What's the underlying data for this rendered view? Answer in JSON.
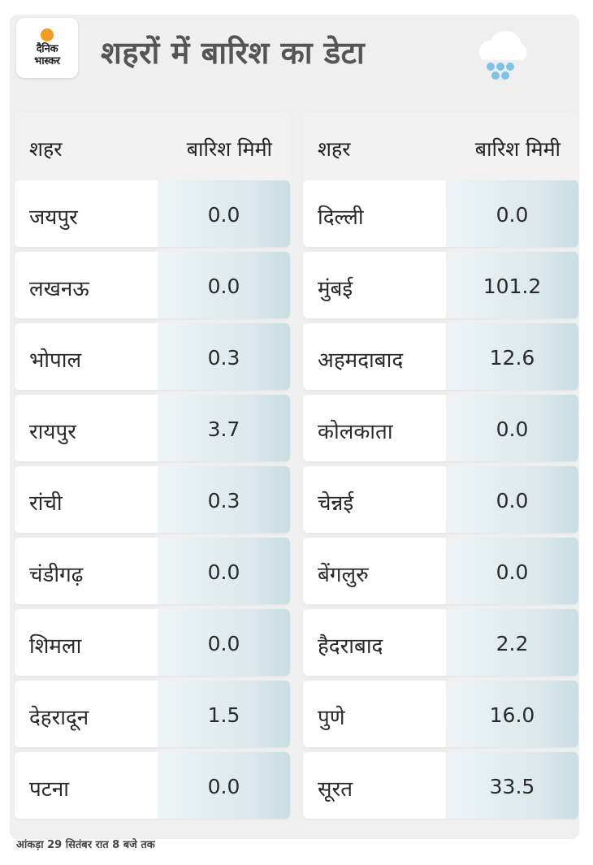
{
  "brand": {
    "logo_line1": "दैनिक",
    "logo_line2": "भास्कर",
    "accent_color": "#f39c1f"
  },
  "title": "शहरों में बारिश का डेटा",
  "weather_icon": "rain-cloud-icon",
  "table": {
    "header_city": "शहर",
    "header_rain": "बारिश मिमी",
    "left": [
      {
        "city": "जयपुर",
        "rain": "0.0"
      },
      {
        "city": "लखनऊ",
        "rain": "0.0"
      },
      {
        "city": "भोपाल",
        "rain": "0.3"
      },
      {
        "city": "रायपुर",
        "rain": "3.7"
      },
      {
        "city": "रांची",
        "rain": "0.3"
      },
      {
        "city": "चंडीगढ़",
        "rain": "0.0"
      },
      {
        "city": "शिमला",
        "rain": "0.0"
      },
      {
        "city": "देहरादून",
        "rain": "1.5"
      },
      {
        "city": "पटना",
        "rain": "0.0"
      }
    ],
    "right": [
      {
        "city": "दिल्ली",
        "rain": "0.0"
      },
      {
        "city": "मुंबई",
        "rain": "101.2"
      },
      {
        "city": "अहमदाबाद",
        "rain": "12.6"
      },
      {
        "city": "कोलकाता",
        "rain": "0.0"
      },
      {
        "city": "चेन्नई",
        "rain": "0.0"
      },
      {
        "city": "बेंगलुरु",
        "rain": "0.0"
      },
      {
        "city": "हैदराबाद",
        "rain": "2.2"
      },
      {
        "city": "पुणे",
        "rain": "16.0"
      },
      {
        "city": "सूरत",
        "rain": "33.5"
      }
    ]
  },
  "footnote": "आंकड़ा 29 सितंबर रात 8 बजे तक"
}
